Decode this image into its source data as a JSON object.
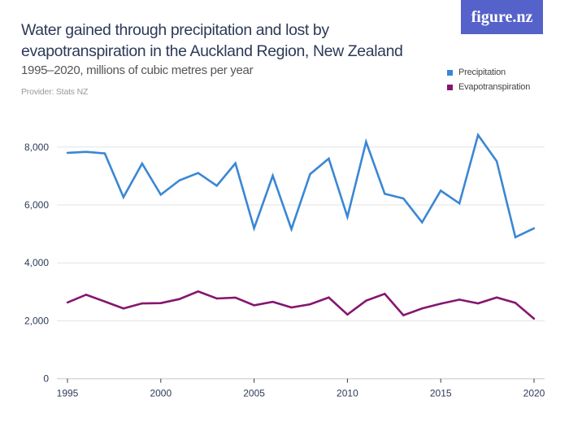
{
  "header": {
    "title": "Water gained through precipitation and lost by evapotranspiration in the Auckland Region, New Zealand",
    "subtitle": "1995–2020, millions of cubic metres per year",
    "provider": "Provider: Stats NZ",
    "logo": "figure.nz"
  },
  "colors": {
    "precipitation": "#3a87d4",
    "evapotranspiration": "#85166f",
    "grid": "#dddddd",
    "logo_bg": "#5562c9"
  },
  "chart_data": {
    "type": "line",
    "title": "Water gained through precipitation and lost by evapotranspiration in the Auckland Region, New Zealand",
    "subtitle": "1995–2020, millions of cubic metres per year",
    "x": [
      1995,
      1996,
      1997,
      1998,
      1999,
      2000,
      2001,
      2002,
      2003,
      2004,
      2005,
      2006,
      2007,
      2008,
      2009,
      2010,
      2011,
      2012,
      2013,
      2014,
      2015,
      2016,
      2017,
      2018,
      2019,
      2020
    ],
    "xlim": [
      1995,
      2020
    ],
    "ylim": [
      0,
      8500
    ],
    "x_ticks": [
      "1995",
      "2000",
      "2005",
      "2010",
      "2015",
      "2020"
    ],
    "y_ticks": [
      "0",
      "2,000",
      "4,000",
      "6,000",
      "8,000"
    ],
    "y_tick_values": [
      0,
      2000,
      4000,
      6000,
      8000
    ],
    "grid": "horizontal",
    "legend_placement": "top-right",
    "series": [
      {
        "name": "Precipitation",
        "color": "#3a87d4",
        "values": [
          7800,
          7835,
          7780,
          6270,
          7430,
          6355,
          6850,
          7105,
          6665,
          7440,
          5195,
          7010,
          5165,
          7065,
          7600,
          5590,
          8180,
          6385,
          6225,
          5400,
          6495,
          6055,
          8415,
          7510,
          4885,
          5195
        ]
      },
      {
        "name": "Evapotranspiration",
        "color": "#85166f",
        "values": [
          2630,
          2900,
          2665,
          2425,
          2600,
          2610,
          2750,
          3015,
          2770,
          2800,
          2535,
          2655,
          2460,
          2570,
          2805,
          2215,
          2695,
          2930,
          2190,
          2425,
          2590,
          2730,
          2600,
          2805,
          2620,
          2070
        ]
      }
    ]
  }
}
